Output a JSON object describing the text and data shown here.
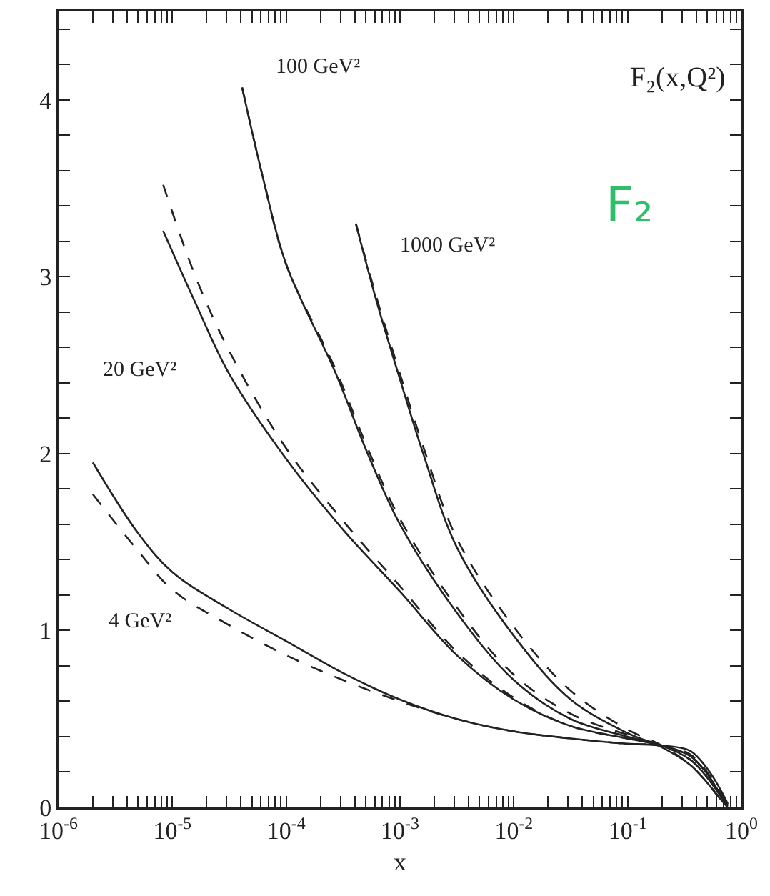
{
  "chart_data": {
    "type": "line",
    "title": "F₂(x,Q²)",
    "xlabel": "x",
    "log": "x",
    "grid": false,
    "marker": "none",
    "xlim": [
      1e-06,
      1
    ],
    "xticks": [
      {
        "value": 1e-06,
        "label": "10$^{-6}$"
      },
      {
        "value": 2e-06,
        "label": null
      },
      {
        "value": 3e-06,
        "label": null
      },
      {
        "value": 4e-06,
        "label": null
      },
      {
        "value": 5e-06,
        "label": null
      },
      {
        "value": 6e-06,
        "label": null
      },
      {
        "value": 7e-06,
        "label": null
      },
      {
        "value": 8e-06,
        "label": null
      },
      {
        "value": 9e-06,
        "label": null
      },
      {
        "value": 1e-05,
        "label": "10$^{-5}$"
      },
      {
        "value": 2e-05,
        "label": null
      },
      {
        "value": 3e-05,
        "label": null
      },
      {
        "value": 4e-05,
        "label": null
      },
      {
        "value": 5e-05,
        "label": null
      },
      {
        "value": 6e-05,
        "label": null
      },
      {
        "value": 7e-05,
        "label": null
      },
      {
        "value": 8e-05,
        "label": null
      },
      {
        "value": 9e-05,
        "label": null
      },
      {
        "value": 0.0001,
        "label": "10$^{-4}$"
      },
      {
        "value": 0.0002,
        "label": null
      },
      {
        "value": 0.0003,
        "label": null
      },
      {
        "value": 0.0004,
        "label": null
      },
      {
        "value": 0.0005,
        "label": null
      },
      {
        "value": 0.0006,
        "label": null
      },
      {
        "value": 0.0007,
        "label": null
      },
      {
        "value": 0.0008,
        "label": null
      },
      {
        "value": 0.0009,
        "label": null
      },
      {
        "value": 0.001,
        "label": "10$^{-3}$"
      },
      {
        "value": 0.002,
        "label": null
      },
      {
        "value": 0.003,
        "label": null
      },
      {
        "value": 0.004,
        "label": null
      },
      {
        "value": 0.005,
        "label": null
      },
      {
        "value": 0.006,
        "label": null
      },
      {
        "value": 0.007,
        "label": null
      },
      {
        "value": 0.008,
        "label": null
      },
      {
        "value": 0.009,
        "label": null
      },
      {
        "value": 0.01,
        "label": "10$^{-2}$"
      },
      {
        "value": 0.02,
        "label": null
      },
      {
        "value": 0.03,
        "label": null
      },
      {
        "value": 0.04,
        "label": null
      },
      {
        "value": 0.05,
        "label": null
      },
      {
        "value": 0.06,
        "label": null
      },
      {
        "value": 0.07,
        "label": null
      },
      {
        "value": 0.08,
        "label": null
      },
      {
        "value": 0.09,
        "label": null
      },
      {
        "value": 0.1,
        "label": "10$^{-1}$"
      },
      {
        "value": 0.2,
        "label": null
      },
      {
        "value": 0.3,
        "label": null
      },
      {
        "value": 0.4,
        "label": null
      },
      {
        "value": 0.5,
        "label": null
      },
      {
        "value": 0.6,
        "label": null
      },
      {
        "value": 0.7,
        "label": null
      },
      {
        "value": 0.8,
        "label": null
      },
      {
        "value": 0.9,
        "label": null
      },
      {
        "value": 1,
        "label": "10$^{0}$"
      }
    ],
    "ylim": [
      0,
      4.5
    ],
    "yticks": [
      0,
      {
        "value": 0.2,
        "label": null
      },
      {
        "value": 0.4,
        "label": null
      },
      {
        "value": 0.6,
        "label": null
      },
      {
        "value": 0.8,
        "label": null
      },
      1,
      {
        "value": 1.2,
        "label": null
      },
      {
        "value": 1.4,
        "label": null
      },
      {
        "value": 1.6,
        "label": null
      },
      {
        "value": 1.8,
        "label": null
      },
      2,
      {
        "value": 2.2,
        "label": null
      },
      {
        "value": 2.4,
        "label": null
      },
      {
        "value": 2.6,
        "label": null
      },
      {
        "value": 2.8,
        "label": null
      },
      3,
      {
        "value": 3.2,
        "label": null
      },
      {
        "value": 3.4,
        "label": null
      },
      {
        "value": 3.6,
        "label": null
      },
      {
        "value": 3.8,
        "label": null
      },
      4,
      {
        "value": 4.2,
        "label": null
      },
      {
        "value": 4.4,
        "label": null
      }
    ],
    "series": [
      {
        "color": "#222222",
        "line_style": "solid",
        "x": [
          2e-06,
          5e-06,
          1e-05,
          3.16e-05,
          0.0001,
          0.000316,
          0.001,
          0.00316,
          0.01,
          0.0316,
          0.1,
          0.2,
          0.355,
          0.5,
          0.63,
          0.76
        ],
        "values": [
          1.95,
          1.55,
          1.33,
          1.12,
          0.94,
          0.76,
          0.61,
          0.5,
          0.43,
          0.39,
          0.36,
          0.35,
          0.32,
          0.22,
          0.12,
          0.02
        ]
      },
      {
        "color": "#222222",
        "line_style": "dashed",
        "x": [
          2e-06,
          5e-06,
          1e-05,
          3.16e-05,
          0.0001,
          0.000316,
          0.001,
          0.00316,
          0.01,
          0.0316,
          0.1,
          0.2,
          0.355,
          0.5,
          0.63,
          0.76
        ],
        "values": [
          1.77,
          1.45,
          1.23,
          1.03,
          0.86,
          0.72,
          0.6,
          0.5,
          0.43,
          0.39,
          0.36,
          0.35,
          0.3,
          0.2,
          0.1,
          0.02
        ]
      },
      {
        "color": "#222222",
        "line_style": "solid",
        "x": [
          8.3e-06,
          1.6e-05,
          3.16e-05,
          0.0001,
          0.000316,
          0.001,
          0.00316,
          0.01,
          0.0316,
          0.1,
          0.2,
          0.355,
          0.5,
          0.63,
          0.76
        ],
        "values": [
          3.26,
          2.85,
          2.45,
          1.97,
          1.57,
          1.22,
          0.86,
          0.61,
          0.46,
          0.39,
          0.35,
          0.29,
          0.19,
          0.09,
          0.01
        ]
      },
      {
        "color": "#222222",
        "line_style": "dashed",
        "x": [
          8.3e-06,
          1.6e-05,
          3.16e-05,
          0.0001,
          0.000316,
          0.001,
          0.00316,
          0.01,
          0.0316,
          0.1,
          0.2,
          0.355,
          0.5,
          0.63,
          0.76
        ],
        "values": [
          3.52,
          3.0,
          2.58,
          2.03,
          1.62,
          1.25,
          0.88,
          0.62,
          0.46,
          0.39,
          0.35,
          0.29,
          0.19,
          0.09,
          0.01
        ]
      },
      {
        "color": "#222222",
        "line_style": "solid",
        "x": [
          4.1e-05,
          6.3e-05,
          0.0001,
          0.00027,
          0.00052,
          0.001,
          0.00316,
          0.01,
          0.0316,
          0.1,
          0.2,
          0.355,
          0.5,
          0.63,
          0.76
        ],
        "values": [
          4.07,
          3.55,
          3.07,
          2.46,
          2.0,
          1.6,
          1.1,
          0.72,
          0.5,
          0.4,
          0.35,
          0.27,
          0.17,
          0.08,
          0.01
        ]
      },
      {
        "color": "#222222",
        "line_style": "dashed",
        "x": [
          4.1e-05,
          6.3e-05,
          0.0001,
          0.00027,
          0.00052,
          0.001,
          0.00316,
          0.01,
          0.0316,
          0.1,
          0.2,
          0.355,
          0.5,
          0.63,
          0.76
        ],
        "values": [
          4.07,
          3.55,
          3.07,
          2.48,
          2.03,
          1.63,
          1.13,
          0.75,
          0.53,
          0.41,
          0.35,
          0.27,
          0.17,
          0.08,
          0.01
        ]
      },
      {
        "color": "#222222",
        "line_style": "solid",
        "x": [
          0.00041,
          0.00063,
          0.001,
          0.0016,
          0.00316,
          0.01,
          0.0316,
          0.1,
          0.2,
          0.355,
          0.5,
          0.63,
          0.76
        ],
        "values": [
          3.3,
          2.85,
          2.42,
          2.0,
          1.47,
          0.97,
          0.61,
          0.42,
          0.34,
          0.24,
          0.14,
          0.06,
          0.0
        ]
      },
      {
        "color": "#222222",
        "line_style": "dashed",
        "x": [
          0.00041,
          0.00063,
          0.001,
          0.0016,
          0.00316,
          0.01,
          0.0316,
          0.1,
          0.2,
          0.355,
          0.5,
          0.63,
          0.76
        ],
        "values": [
          3.3,
          2.87,
          2.45,
          2.04,
          1.52,
          1.02,
          0.66,
          0.44,
          0.35,
          0.24,
          0.14,
          0.06,
          0.0
        ]
      }
    ],
    "annotations": [
      "F₂",
      "4 GeV²",
      "20 GeV²",
      "100 GeV²",
      "1000 GeV²"
    ]
  }
}
